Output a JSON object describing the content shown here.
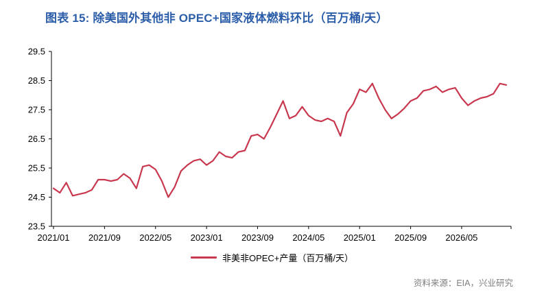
{
  "title": "图表 15: 除美国外其他非 OPEC+国家液体燃料环比（百万桶/天）",
  "legend": {
    "series_label": "非美非OPEC+产量（百万桶/天）"
  },
  "source": "资料来源：EIA，兴业研究",
  "colors": {
    "title_blue": "#2B5DA9",
    "line_red": "#C8374D",
    "axis_black": "#000000",
    "source_gray": "#7F7F7F"
  },
  "chart_data": {
    "type": "line",
    "title": "图表 15: 除美国外其他非 OPEC+国家液体燃料环比（百万桶/天）",
    "series_name": "非美非OPEC+产量（百万桶/天）",
    "x_start": "2021/01",
    "x_freq": "monthly",
    "x_tick_labels": [
      "2021/01",
      "2021/09",
      "2022/05",
      "2023/01",
      "2023/09",
      "2024/05",
      "2025/01",
      "2025/09",
      "2026/05"
    ],
    "x_tick_indices": [
      0,
      8,
      16,
      24,
      32,
      40,
      48,
      56,
      64
    ],
    "y_ticks": [
      23.5,
      24.5,
      25.5,
      26.5,
      27.5,
      28.5,
      29.5
    ],
    "ylim": [
      23.5,
      29.5
    ],
    "grid": false,
    "legend_position": "bottom-center",
    "values": [
      24.8,
      24.65,
      25.0,
      24.55,
      24.6,
      24.65,
      24.75,
      25.1,
      25.1,
      25.05,
      25.1,
      25.3,
      25.15,
      24.8,
      25.55,
      25.6,
      25.45,
      25.05,
      24.5,
      24.85,
      25.4,
      25.6,
      25.75,
      25.8,
      25.6,
      25.75,
      26.05,
      25.9,
      25.85,
      26.05,
      26.1,
      26.6,
      26.65,
      26.5,
      26.9,
      27.35,
      27.8,
      27.2,
      27.3,
      27.6,
      27.3,
      27.15,
      27.1,
      27.2,
      27.1,
      26.6,
      27.4,
      27.7,
      28.2,
      28.1,
      28.4,
      27.9,
      27.5,
      27.2,
      27.35,
      27.55,
      27.8,
      27.9,
      28.15,
      28.2,
      28.3,
      28.1,
      28.2,
      28.25,
      27.9,
      27.65,
      27.8,
      27.9,
      27.95,
      28.05,
      28.4,
      28.35
    ]
  }
}
